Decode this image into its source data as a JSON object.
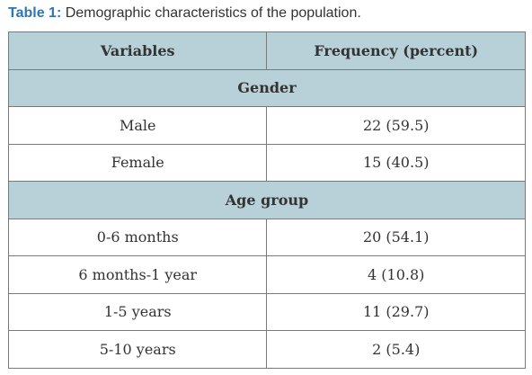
{
  "caption": {
    "label": "Table 1:",
    "text": " Demographic characteristics of the population."
  },
  "table": {
    "headers": [
      "Variables",
      "Frequency (percent)"
    ],
    "sections": [
      {
        "title": "Gender",
        "rows": [
          [
            "Male",
            "22 (59.5)"
          ],
          [
            "Female",
            "15 (40.5)"
          ]
        ]
      },
      {
        "title": "Age group",
        "rows": [
          [
            "0-6 months",
            "20 (54.1)"
          ],
          [
            "6 months-1 year",
            "4 (10.8)"
          ],
          [
            "1-5 years",
            "11 (29.7)"
          ],
          [
            "5-10 years",
            "2 (5.4)"
          ]
        ]
      }
    ]
  },
  "colors": {
    "caption_label": "#2e75b6",
    "header_background": "#b8d1d8",
    "border": "#7a7a7a"
  }
}
